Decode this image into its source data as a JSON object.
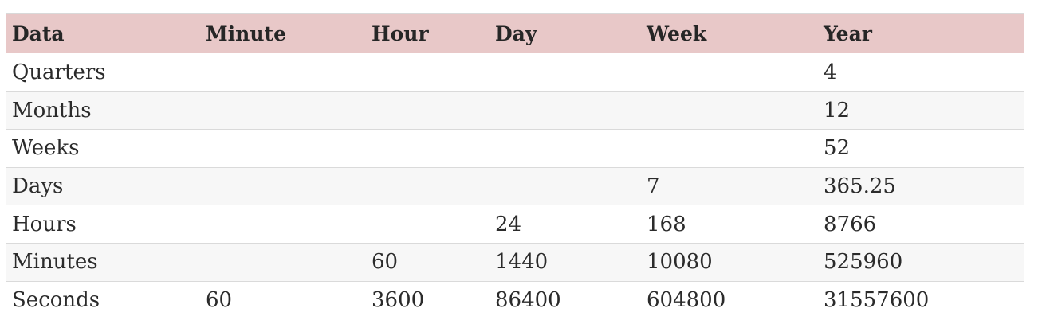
{
  "table": {
    "headers": [
      "Data",
      "Minute",
      "Hour",
      "Day",
      "Week",
      "Year"
    ],
    "rows": [
      [
        "Quarters",
        "",
        "",
        "",
        "",
        "4"
      ],
      [
        "Months",
        "",
        "",
        "",
        "",
        "12"
      ],
      [
        "Weeks",
        "",
        "",
        "",
        "",
        "52"
      ],
      [
        "Days",
        "",
        "",
        "",
        "7",
        "365.25"
      ],
      [
        "Hours",
        "",
        "",
        "24",
        "168",
        "8766"
      ],
      [
        "Minutes",
        "",
        "60",
        "1440",
        "10080",
        "525960"
      ],
      [
        "Seconds",
        "60",
        "3600",
        "86400",
        "604800",
        "31557600"
      ]
    ]
  },
  "colors": {
    "header_background": "#e8c8c8",
    "stripe_background": "#f7f7f7",
    "row_divider": "#dadada"
  }
}
